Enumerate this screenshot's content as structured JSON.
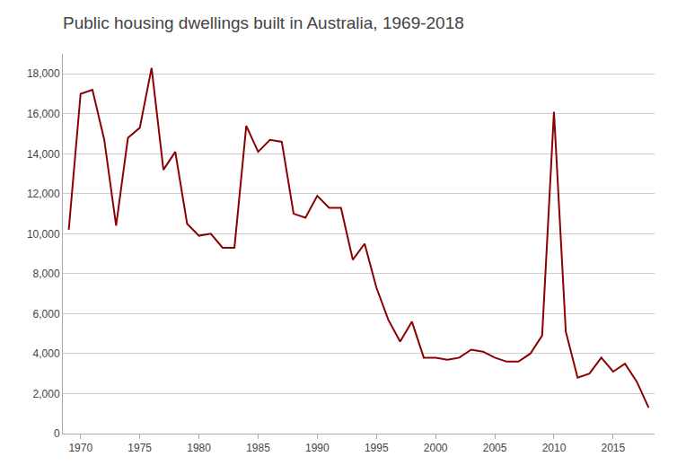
{
  "chart_data": {
    "type": "line",
    "title": "Public housing dwellings built in Australia, 1969-2018",
    "x": [
      1969,
      1970,
      1971,
      1972,
      1973,
      1974,
      1975,
      1976,
      1977,
      1978,
      1979,
      1980,
      1981,
      1982,
      1983,
      1984,
      1985,
      1986,
      1987,
      1988,
      1989,
      1990,
      1991,
      1992,
      1993,
      1994,
      1995,
      1996,
      1997,
      1998,
      1999,
      2000,
      2001,
      2002,
      2003,
      2004,
      2005,
      2006,
      2007,
      2008,
      2009,
      2010,
      2011,
      2012,
      2013,
      2014,
      2015,
      2016,
      2017,
      2018
    ],
    "values": [
      10200,
      17000,
      17200,
      14700,
      10400,
      14800,
      15300,
      18300,
      13200,
      14100,
      10500,
      9900,
      10000,
      9300,
      9300,
      15400,
      14100,
      14700,
      14600,
      11000,
      10800,
      11900,
      11300,
      11300,
      8700,
      9500,
      7300,
      5700,
      4600,
      5600,
      3800,
      3800,
      3700,
      3800,
      4200,
      4100,
      3800,
      3600,
      3600,
      4000,
      4900,
      16100,
      5100,
      2800,
      3000,
      3800,
      3100,
      3500,
      2600,
      1300
    ],
    "color": "#8B0000",
    "xlim": [
      1968.5,
      2018.5
    ],
    "xticks": [
      1970,
      1975,
      1980,
      1985,
      1990,
      1995,
      2000,
      2005,
      2010,
      2015
    ],
    "ylim": [
      0,
      19000
    ],
    "yticks": [
      0,
      {
        "value": 2000,
        "label": "2,000"
      },
      {
        "value": 4000,
        "label": "4,000"
      },
      {
        "value": 6000,
        "label": "6,000"
      },
      {
        "value": 8000,
        "label": "8,000"
      },
      {
        "value": 10000,
        "label": "10,000"
      },
      {
        "value": 12000,
        "label": "12,000"
      },
      {
        "value": 14000,
        "label": "14,000"
      },
      {
        "value": 16000,
        "label": "16,000"
      },
      {
        "value": 18000,
        "label": "18,000"
      }
    ],
    "grid": "y"
  }
}
